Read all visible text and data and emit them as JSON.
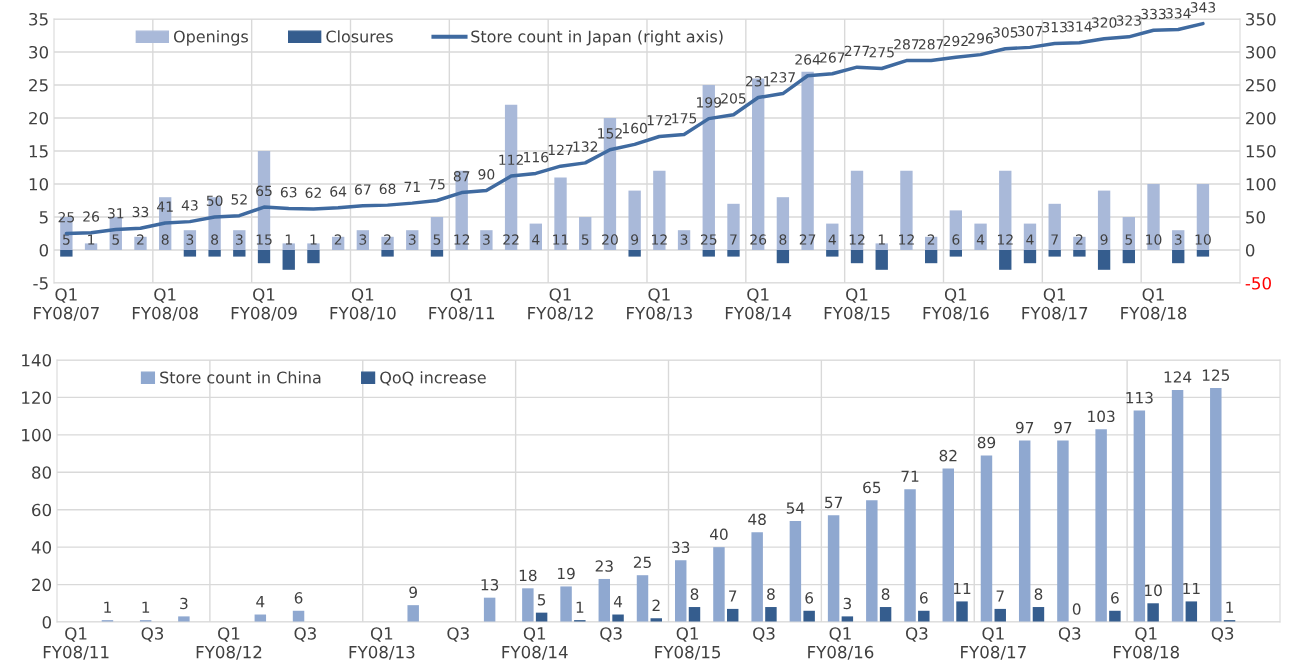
{
  "chart_data": [
    {
      "type": "bar",
      "categories": [
        "Q1\nFY08/07",
        null,
        null,
        null,
        "Q1\nFY08/08",
        null,
        null,
        null,
        "Q1\nFY08/09",
        null,
        null,
        null,
        "Q1\nFY08/10",
        null,
        null,
        null,
        "Q1\nFY08/11",
        null,
        null,
        null,
        "Q1\nFY08/12",
        null,
        null,
        null,
        "Q1\nFY08/13",
        null,
        null,
        null,
        "Q1\nFY08/14",
        null,
        null,
        null,
        "Q1\nFY08/15",
        null,
        null,
        null,
        "Q1\nFY08/16",
        null,
        null,
        null,
        "Q1\nFY08/17",
        null,
        null,
        null,
        "Q1\nFY08/18",
        null,
        null
      ],
      "series": [
        {
          "name": "Openings",
          "type": "bar",
          "color": "#a9b9d9",
          "values": [
            5,
            1,
            5,
            2,
            8,
            3,
            8,
            3,
            15,
            1,
            1,
            2,
            3,
            2,
            3,
            5,
            12,
            3,
            22,
            4,
            11,
            5,
            20,
            9,
            12,
            3,
            25,
            7,
            26,
            8,
            27,
            4,
            12,
            1,
            12,
            2,
            6,
            4,
            12,
            4,
            7,
            2,
            9,
            5,
            10,
            3,
            10
          ],
          "value_labels": [
            "5",
            "1",
            "5",
            "2",
            "8",
            "3",
            "8",
            "3",
            "15",
            "1",
            "1",
            "2",
            "3",
            "2",
            "3",
            "5",
            "12",
            "3",
            "22",
            "4",
            "11",
            "5",
            "20",
            "9",
            "12",
            "3",
            "25",
            "7",
            "26",
            "8",
            "27",
            "4",
            "12",
            "1",
            "12",
            "2",
            "6",
            "4",
            "12",
            "4",
            "7",
            "2",
            "9",
            "5",
            "10",
            "3",
            "10"
          ]
        },
        {
          "name": "Closures",
          "type": "bar",
          "color": "#355d8e",
          "values": [
            -1,
            0,
            0,
            0,
            0,
            -1,
            -1,
            -1,
            -2,
            -3,
            -2,
            0,
            0,
            -1,
            0,
            -1,
            0,
            0,
            0,
            0,
            0,
            0,
            0,
            -1,
            0,
            0,
            -1,
            -1,
            0,
            -2,
            0,
            -1,
            -2,
            -3,
            0,
            -2,
            -1,
            0,
            -3,
            -2,
            -1,
            -1,
            -3,
            -2,
            0,
            -2,
            -1
          ]
        },
        {
          "name": "Store count in Japan (right axis)",
          "type": "line",
          "axis": "y2",
          "color": "#3f6aa0",
          "values": [
            25,
            26,
            31,
            33,
            41,
            43,
            50,
            52,
            65,
            63,
            62,
            64,
            67,
            68,
            71,
            75,
            87,
            90,
            112,
            116,
            127,
            132,
            152,
            160,
            172,
            175,
            199,
            205,
            231,
            237,
            264,
            267,
            277,
            275,
            287,
            287,
            292,
            296,
            305,
            307,
            313,
            314,
            320,
            323,
            333,
            334,
            343
          ],
          "value_labels": [
            "25",
            "26",
            "31",
            "33",
            "41",
            "43",
            "50",
            "52",
            "65",
            "63",
            "62",
            "64",
            "67",
            "68",
            "71",
            "75",
            "87",
            "90",
            "112",
            "116",
            "127",
            "132",
            "152",
            "160",
            "172",
            "175",
            "199",
            "205",
            "231",
            "237",
            "264",
            "267",
            "277",
            "275",
            "287",
            "287",
            "292",
            "296",
            "305",
            "307",
            "313",
            "314",
            "320",
            "323",
            "333",
            "334",
            "343"
          ]
        }
      ],
      "ylim": [
        -5,
        35
      ],
      "yticks": [
        -5,
        0,
        5,
        10,
        15,
        20,
        25,
        30,
        35
      ],
      "y2lim": [
        -50,
        350
      ],
      "y2ticks": [
        -50,
        0,
        50,
        100,
        150,
        200,
        250,
        300,
        350
      ],
      "grid": true,
      "legend": "top left",
      "stacked": true
    },
    {
      "type": "bar",
      "categories": [
        "Q1\nFY08/11",
        null,
        "Q3",
        null,
        "Q1\nFY08/12",
        null,
        "Q3",
        null,
        "Q1\nFY08/13",
        null,
        "Q3",
        null,
        "Q1\nFY08/14",
        null,
        "Q3",
        null,
        "Q1\nFY08/15",
        null,
        "Q3",
        null,
        "Q1\nFY08/16",
        null,
        "Q3",
        null,
        "Q1\nFY08/17",
        null,
        "Q3",
        null,
        "Q1\nFY08/18",
        null,
        "Q3"
      ],
      "series": [
        {
          "name": "Store count in China",
          "color": "#8fa8d0",
          "values": [
            null,
            1,
            1,
            3,
            null,
            4,
            6,
            null,
            null,
            9,
            null,
            13,
            18,
            19,
            23,
            25,
            33,
            40,
            48,
            54,
            57,
            65,
            71,
            82,
            89,
            97,
            97,
            103,
            113,
            124,
            125
          ]
        },
        {
          "name": "QoQ increase",
          "color": "#355d8e",
          "values": [
            null,
            null,
            null,
            null,
            null,
            null,
            null,
            null,
            null,
            null,
            null,
            null,
            5,
            1,
            4,
            2,
            8,
            7,
            8,
            6,
            3,
            8,
            6,
            11,
            7,
            8,
            0,
            6,
            10,
            11,
            1
          ]
        }
      ],
      "ylim": [
        0,
        140
      ],
      "yticks": [
        0,
        20,
        40,
        60,
        80,
        100,
        120,
        140
      ],
      "grid": true,
      "legend": "top left",
      "data_labels": true
    }
  ]
}
